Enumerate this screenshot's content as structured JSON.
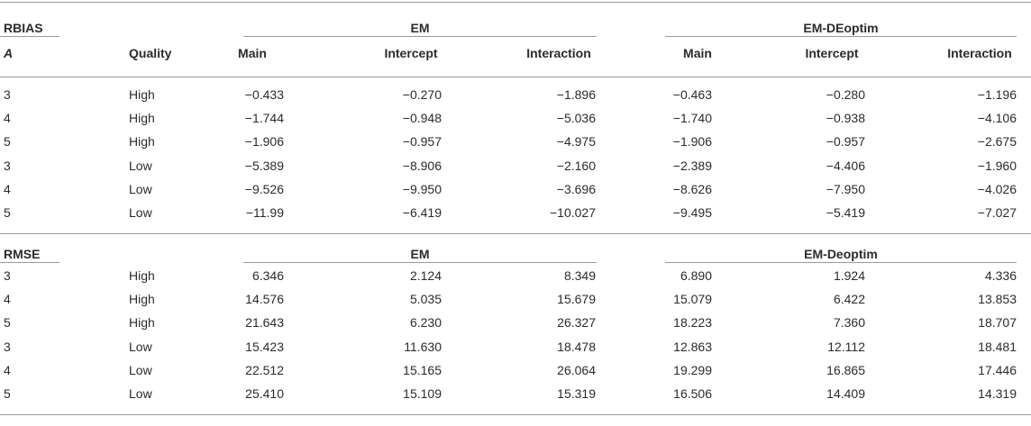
{
  "sections": [
    {
      "label": "RBIAS",
      "groups": [
        "EM",
        "EM-DEoptim"
      ],
      "columns": [
        "A",
        "Quality",
        "Main",
        "Intercept",
        "Interaction",
        "Main",
        "Intercept",
        "Interaction"
      ],
      "rows": [
        [
          "3",
          "High",
          "−0.433",
          "−0.270",
          "−1.896",
          "−0.463",
          "−0.280",
          "−1.196"
        ],
        [
          "4",
          "High",
          "−1.744",
          "−0.948",
          "−5.036",
          "−1.740",
          "−0.938",
          "−4.106"
        ],
        [
          "5",
          "High",
          "−1.906",
          "−0.957",
          "−4.975",
          "−1.906",
          "−0.957",
          "−2.675"
        ],
        [
          "3",
          "Low",
          "−5.389",
          "−8.906",
          "−2.160",
          "−2.389",
          "−4.406",
          "−1.960"
        ],
        [
          "4",
          "Low",
          "−9.526",
          "−9.950",
          "−3.696",
          "−8.626",
          "−7.950",
          "−4.026"
        ],
        [
          "5",
          "Low",
          "−11.99",
          "−6.419",
          "−10.027",
          "−9.495",
          "−5.419",
          "−7.027"
        ]
      ]
    },
    {
      "label": "RMSE",
      "groups": [
        "EM",
        "EM-Deoptim"
      ],
      "rows": [
        [
          "3",
          "High",
          "6.346",
          "2.124",
          "8.349",
          "6.890",
          "1.924",
          "4.336"
        ],
        [
          "4",
          "High",
          "14.576",
          "5.035",
          "15.679",
          "15.079",
          "6.422",
          "13.853"
        ],
        [
          "5",
          "High",
          "21.643",
          "6.230",
          "26.327",
          "18.223",
          "7.360",
          "18.707"
        ],
        [
          "3",
          "Low",
          "15.423",
          "11.630",
          "18.478",
          "12.863",
          "12.112",
          "18.481"
        ],
        [
          "4",
          "Low",
          "22.512",
          "15.165",
          "26.064",
          "19.299",
          "16.865",
          "17.446"
        ],
        [
          "5",
          "Low",
          "25.410",
          "15.109",
          "15.319",
          "16.506",
          "14.409",
          "14.319"
        ]
      ]
    }
  ]
}
